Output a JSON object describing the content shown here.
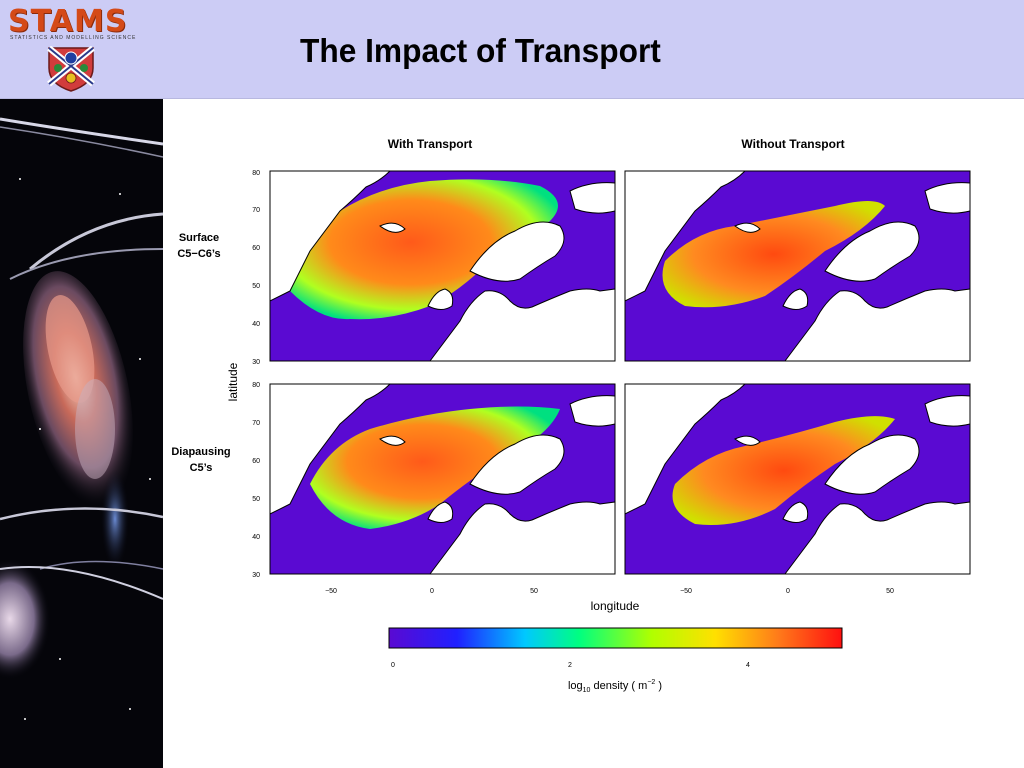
{
  "header": {
    "logo_text": "STAMS",
    "logo_subtitle": "STATISTICS AND MODELLING SCIENCE",
    "title": "The Impact of Transport",
    "background": "#ccccf5",
    "logo_color": "#d44a18"
  },
  "figure": {
    "col_titles": [
      "With Transport",
      "Without Transport"
    ],
    "row_labels": [
      {
        "line1": "Surface",
        "line2": "C5−C6’s"
      },
      {
        "line1": "Diapausing",
        "line2": "C5’s"
      }
    ],
    "y_axis_label": "latitude",
    "x_axis_label": "longitude",
    "y_ticks": [
      "80",
      "70",
      "60",
      "50",
      "40",
      "30"
    ],
    "x_ticks": [
      "−50",
      "0",
      "50"
    ],
    "colorbar": {
      "ticks": [
        "0",
        "2",
        "4"
      ],
      "label_main": "log",
      "label_sub": "10",
      "label_rest": " density ( m",
      "label_sup": "−2",
      "label_end": " )",
      "colors": [
        "#5a0ad2",
        "#2020ff",
        "#00c8ff",
        "#00ff80",
        "#b0ff00",
        "#ffe000",
        "#ff7a1a",
        "#ff1010"
      ]
    },
    "panels": [
      {
        "row": "Surface C5−C6’s",
        "column": "With Transport"
      },
      {
        "row": "Surface C5−C6’s",
        "column": "Without Transport"
      },
      {
        "row": "Diapausing C5’s",
        "column": "With Transport"
      },
      {
        "row": "Diapausing C5’s",
        "column": "Without Transport"
      }
    ]
  }
}
